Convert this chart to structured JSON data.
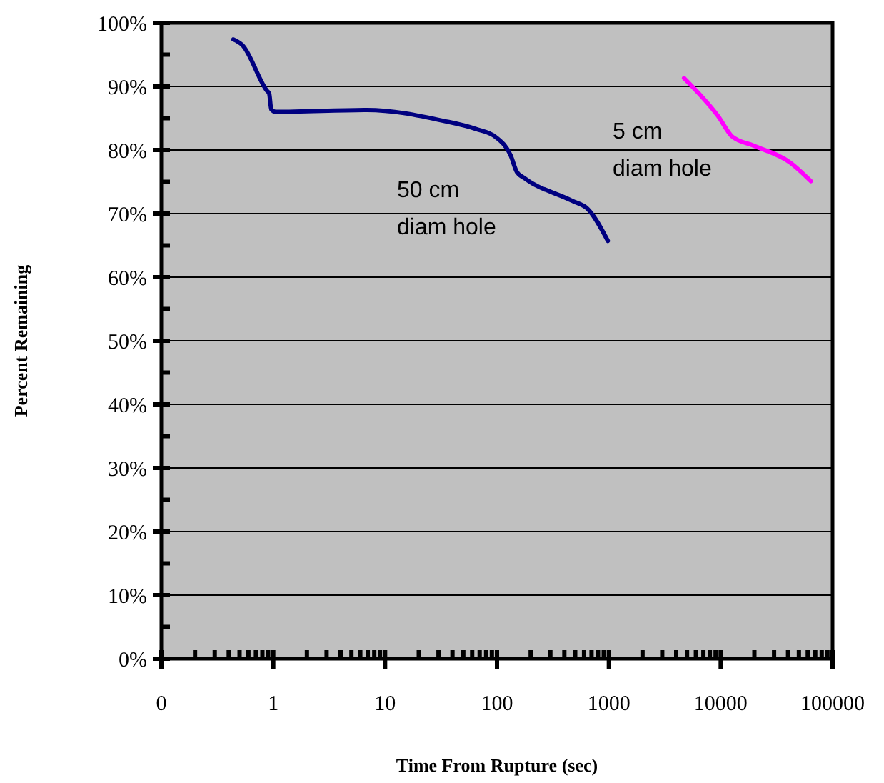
{
  "chart_data": {
    "type": "line",
    "xlabel": "Time From Rupture (sec)",
    "ylabel": "Percent Remaining",
    "log": "x",
    "grid": "y",
    "line_style": "solid",
    "marker": "none",
    "xlim": [
      0.1,
      100000
    ],
    "xticks": [
      {
        "value": 0.1,
        "label": "0"
      },
      {
        "value": 0.2,
        "label": null
      },
      {
        "value": 0.3,
        "label": null
      },
      {
        "value": 0.4,
        "label": null
      },
      {
        "value": 0.5,
        "label": null
      },
      {
        "value": 0.6,
        "label": null
      },
      {
        "value": 0.7,
        "label": null
      },
      {
        "value": 0.8,
        "label": null
      },
      {
        "value": 0.9,
        "label": null
      },
      1,
      {
        "value": 2,
        "label": null
      },
      {
        "value": 3,
        "label": null
      },
      {
        "value": 4,
        "label": null
      },
      {
        "value": 5,
        "label": null
      },
      {
        "value": 6,
        "label": null
      },
      {
        "value": 7,
        "label": null
      },
      {
        "value": 8,
        "label": null
      },
      {
        "value": 9,
        "label": null
      },
      10,
      {
        "value": 20,
        "label": null
      },
      {
        "value": 30,
        "label": null
      },
      {
        "value": 40,
        "label": null
      },
      {
        "value": 50,
        "label": null
      },
      {
        "value": 60,
        "label": null
      },
      {
        "value": 70,
        "label": null
      },
      {
        "value": 80,
        "label": null
      },
      {
        "value": 90,
        "label": null
      },
      100,
      {
        "value": 200,
        "label": null
      },
      {
        "value": 300,
        "label": null
      },
      {
        "value": 400,
        "label": null
      },
      {
        "value": 500,
        "label": null
      },
      {
        "value": 600,
        "label": null
      },
      {
        "value": 700,
        "label": null
      },
      {
        "value": 800,
        "label": null
      },
      {
        "value": 900,
        "label": null
      },
      1000,
      {
        "value": 2000,
        "label": null
      },
      {
        "value": 3000,
        "label": null
      },
      {
        "value": 4000,
        "label": null
      },
      {
        "value": 5000,
        "label": null
      },
      {
        "value": 6000,
        "label": null
      },
      {
        "value": 7000,
        "label": null
      },
      {
        "value": 8000,
        "label": null
      },
      {
        "value": 9000,
        "label": null
      },
      10000,
      {
        "value": 20000,
        "label": null
      },
      {
        "value": 30000,
        "label": null
      },
      {
        "value": 40000,
        "label": null
      },
      {
        "value": 50000,
        "label": null
      },
      {
        "value": 60000,
        "label": null
      },
      {
        "value": 70000,
        "label": null
      },
      {
        "value": 80000,
        "label": null
      },
      {
        "value": 90000,
        "label": null
      },
      100000
    ],
    "ylim": [
      0,
      100
    ],
    "yticks": [
      {
        "value": 0,
        "label": "0%"
      },
      {
        "value": 5,
        "label": null
      },
      {
        "value": 10,
        "label": "10%"
      },
      {
        "value": 15,
        "label": null
      },
      {
        "value": 20,
        "label": "20%"
      },
      {
        "value": 25,
        "label": null
      },
      {
        "value": 30,
        "label": "30%"
      },
      {
        "value": 35,
        "label": null
      },
      {
        "value": 40,
        "label": "40%"
      },
      {
        "value": 45,
        "label": null
      },
      {
        "value": 50,
        "label": "50%"
      },
      {
        "value": 55,
        "label": null
      },
      {
        "value": 60,
        "label": "60%"
      },
      {
        "value": 65,
        "label": null
      },
      {
        "value": 70,
        "label": "70%"
      },
      {
        "value": 75,
        "label": null
      },
      {
        "value": 80,
        "label": "80%"
      },
      {
        "value": 85,
        "label": null
      },
      {
        "value": 90,
        "label": "90%"
      },
      {
        "value": 95,
        "label": null
      },
      {
        "value": 100,
        "label": "100%"
      }
    ],
    "series": [
      {
        "color": "#000080",
        "x": [
          0.44,
          0.53,
          0.88,
          0.92,
          0.96,
          1.05,
          6.9,
          33,
          65,
          98,
          132,
          151,
          175,
          470,
          650,
          980
        ],
        "values": [
          97.4,
          96.5,
          89.3,
          88.9,
          86.4,
          86,
          86.3,
          84.6,
          83.3,
          82,
          79.2,
          76.5,
          75.6,
          72,
          70.7,
          65.7
        ]
      },
      {
        "color": "#ff00ff",
        "x": [
          4700,
          9500,
          12700,
          19600,
          42000,
          64000
        ],
        "values": [
          91.3,
          85.3,
          82.1,
          80.7,
          78,
          75.1
        ]
      }
    ],
    "annotations": [
      "50 cm\ndiam hole",
      "5 cm\ndiam hole"
    ]
  }
}
